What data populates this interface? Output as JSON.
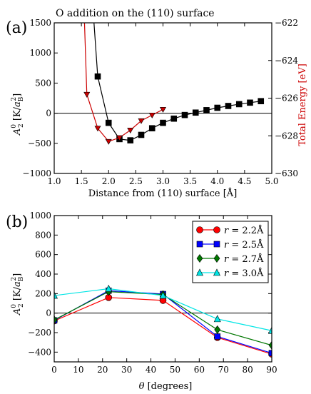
{
  "chart_data": [
    {
      "panel_label": "(a)",
      "type": "line",
      "title": "O addition on the (110) surface",
      "xlabel": "Distance from (110) surface [Å]",
      "ylabel_main": "A",
      "ylabel_sup": "0",
      "ylabel_sub": "2",
      "ylabel_unit_open": " [K/",
      "ylabel_unit_a": "a",
      "ylabel_unit_sub": "B",
      "ylabel_unit_sup": "2",
      "ylabel_unit_close": "]",
      "y2label": "Total Energy [eV]",
      "xlim": [
        1.0,
        5.0
      ],
      "ylim": [
        -1000,
        1500
      ],
      "y2lim": [
        -630,
        -622
      ],
      "xticks": [
        1.0,
        1.5,
        2.0,
        2.5,
        3.0,
        3.5,
        4.0,
        4.5,
        5.0
      ],
      "xtick_labels": [
        "1.0",
        "1.5",
        "2.0",
        "2.5",
        "3.0",
        "3.5",
        "4.0",
        "4.5",
        "5.0"
      ],
      "yticks": [
        -1000,
        -500,
        0,
        500,
        1000,
        1500
      ],
      "ytick_labels": [
        "−1000",
        "−500",
        "0",
        "500",
        "1000",
        "1500"
      ],
      "y2ticks": [
        -630,
        -628,
        -626,
        -624,
        -622
      ],
      "y2tick_labels": [
        "−630",
        "−628",
        "−626",
        "−624",
        "−622"
      ],
      "zero_line": 0,
      "series": [
        {
          "axis": "left",
          "color": "#000000",
          "marker": "square",
          "x": [
            1.6,
            1.8,
            2.0,
            2.2,
            2.4,
            2.6,
            2.8,
            3.0,
            3.2,
            3.4,
            3.6,
            3.8,
            4.0,
            4.2,
            4.4,
            4.6,
            4.8
          ],
          "y": [
            3200,
            610,
            -160,
            -430,
            -450,
            -360,
            -250,
            -160,
            -90,
            -30,
            10,
            50,
            90,
            120,
            150,
            175,
            200
          ]
        },
        {
          "axis": "right",
          "color": "#cc0000",
          "marker": "triangle-down",
          "x": [
            1.5,
            1.6,
            1.8,
            2.0,
            2.2,
            2.4,
            2.6,
            2.8,
            3.0
          ],
          "y": [
            -617,
            -625.8,
            -627.6,
            -628.3,
            -628.1,
            -627.7,
            -627.2,
            -626.9,
            -626.6
          ]
        }
      ]
    },
    {
      "panel_label": "(b)",
      "type": "line",
      "xlabel_sym": "θ",
      "xlabel_unit": " [degrees]",
      "ylabel_main": "A",
      "ylabel_sup": "0",
      "ylabel_sub": "2",
      "ylabel_unit_open": " [K/",
      "ylabel_unit_a": "a",
      "ylabel_unit_sub": "B",
      "ylabel_unit_sup": "2",
      "ylabel_unit_close": "]",
      "xlim": [
        0,
        90
      ],
      "ylim": [
        -500,
        1000
      ],
      "xticks": [
        0,
        10,
        20,
        30,
        40,
        50,
        60,
        70,
        80,
        90
      ],
      "xtick_labels": [
        "0",
        "10",
        "20",
        "30",
        "40",
        "50",
        "60",
        "70",
        "80",
        "90"
      ],
      "yticks": [
        -400,
        -200,
        0,
        200,
        400,
        600,
        800,
        1000
      ],
      "ytick_labels": [
        "−400",
        "−200",
        "0",
        "200",
        "400",
        "600",
        "800",
        "1000"
      ],
      "zero_line": 0,
      "legend_placement": "top-right",
      "series": [
        {
          "name_sym": "r",
          "name_val": " = 2.2Å",
          "color": "#ff0000",
          "marker": "circle",
          "x": [
            0,
            22.5,
            45,
            67.5,
            90
          ],
          "y": [
            -80,
            160,
            130,
            -250,
            -420
          ]
        },
        {
          "name_sym": "r",
          "name_val": " = 2.5Å",
          "color": "#0000ff",
          "marker": "square",
          "x": [
            0,
            22.5,
            45,
            67.5,
            90
          ],
          "y": [
            -75,
            230,
            195,
            -240,
            -410
          ]
        },
        {
          "name_sym": "r",
          "name_val": " = 2.7Å",
          "color": "#007700",
          "marker": "diamond",
          "x": [
            0,
            22.5,
            45,
            67.5,
            90
          ],
          "y": [
            -70,
            220,
            190,
            -170,
            -330
          ]
        },
        {
          "name_sym": "r",
          "name_val": " = 3.0Å",
          "color": "#00e5e5",
          "marker": "triangle-up",
          "x": [
            0,
            22.5,
            45,
            67.5,
            90
          ],
          "y": [
            180,
            250,
            180,
            -60,
            -180
          ]
        }
      ]
    }
  ]
}
